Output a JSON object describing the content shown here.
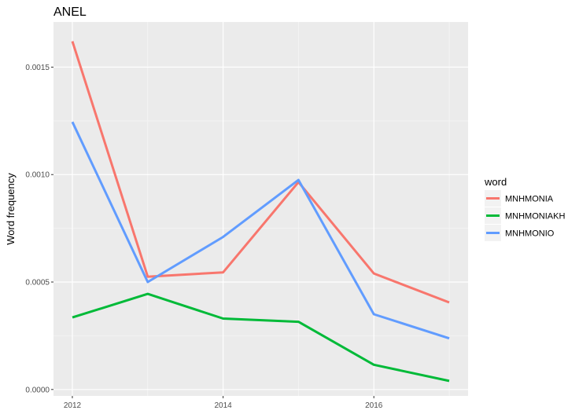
{
  "chart_data": {
    "type": "line",
    "title": "ANEL",
    "xlabel": "",
    "ylabel": "Word frequency",
    "x": [
      2012,
      2013,
      2014,
      2015,
      2016,
      2017
    ],
    "x_ticks": [
      "2012",
      "2014",
      "2016"
    ],
    "y_ticks": [
      "0.0000",
      "0.0005",
      "0.0010",
      "0.0015"
    ],
    "xlim": [
      2011.75,
      2017.25
    ],
    "ylim": [
      -3e-05,
      0.00171
    ],
    "grid": true,
    "legend": {
      "title": "word",
      "placement": "right"
    },
    "series": [
      {
        "name": "MNHMONIA",
        "color": "#F8766D",
        "values": [
          0.00162,
          0.000525,
          0.000545,
          0.000965,
          0.00054,
          0.000405
        ]
      },
      {
        "name": "MNHMONIAKH",
        "color": "#00BA38",
        "values": [
          0.000335,
          0.000445,
          0.00033,
          0.000315,
          0.000115,
          4e-05
        ]
      },
      {
        "name": "MNHMONIO",
        "color": "#619CFF",
        "values": [
          0.001245,
          0.0005,
          0.00071,
          0.000975,
          0.00035,
          0.000238
        ]
      }
    ]
  }
}
